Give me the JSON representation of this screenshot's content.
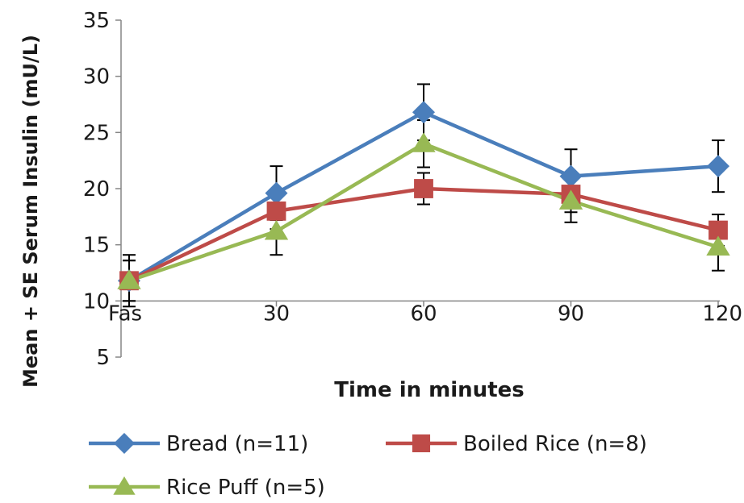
{
  "chart_data": {
    "type": "line",
    "categories": [
      "Fas",
      "30",
      "60",
      "90",
      "120"
    ],
    "xlabel": "Time in minutes",
    "ylabel": "Mean + SE Serum Insulin (mU/L)",
    "ylim": [
      5,
      35
    ],
    "yticks": [
      "5",
      "10",
      "15",
      "20",
      "25",
      "30",
      "35"
    ],
    "grid": false,
    "legend_position": "bottom",
    "series": [
      {
        "name": "Bread (n=11)",
        "color": "#4a7ebb",
        "marker": "diamond",
        "values": [
          11.8,
          19.6,
          26.8,
          21.1,
          22.0
        ],
        "err": [
          2.3,
          2.4,
          2.5,
          2.4,
          2.3
        ]
      },
      {
        "name": "Boiled Rice (n=8)",
        "color": "#be4b48",
        "marker": "square",
        "values": [
          11.8,
          18.0,
          20.0,
          19.5,
          16.3
        ],
        "err": [
          1.8,
          1.6,
          1.4,
          1.6,
          1.4
        ]
      },
      {
        "name": "Rice Puff (n=5)",
        "color": "#98b954",
        "marker": "triangle",
        "values": [
          11.8,
          16.2,
          24.0,
          18.9,
          14.8
        ],
        "err": [
          1.8,
          2.1,
          2.1,
          1.9,
          2.1
        ]
      }
    ]
  }
}
